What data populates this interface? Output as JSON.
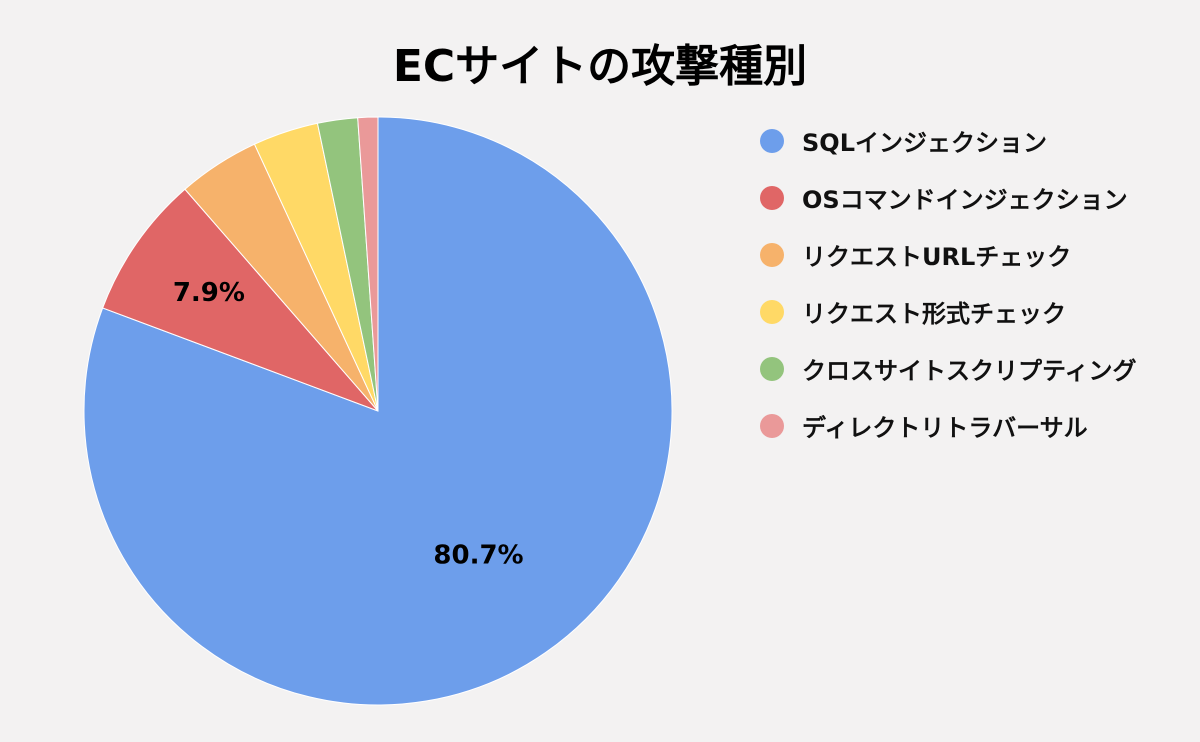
{
  "chart_data": {
    "type": "pie",
    "title": "ECサイトの攻撃種別",
    "legend_position": "right",
    "slices": [
      {
        "label": "SQLインジェクション",
        "value": 80.7,
        "color": "#6d9eeb",
        "data_label": "80.7%"
      },
      {
        "label": "OSコマンドインジェクション",
        "value": 7.9,
        "color": "#e06666",
        "data_label": "7.9%"
      },
      {
        "label": "リクエストURLチェック",
        "value": 4.5,
        "color": "#f6b26b",
        "data_label": ""
      },
      {
        "label": "リクエスト形式チェック",
        "value": 3.6,
        "color": "#ffd966",
        "data_label": ""
      },
      {
        "label": "クロスサイトスクリプティング",
        "value": 2.2,
        "color": "#93c47d",
        "data_label": ""
      },
      {
        "label": "ディレクトリトラバーサル",
        "value": 1.1,
        "color": "#ea9999",
        "data_label": ""
      }
    ]
  }
}
